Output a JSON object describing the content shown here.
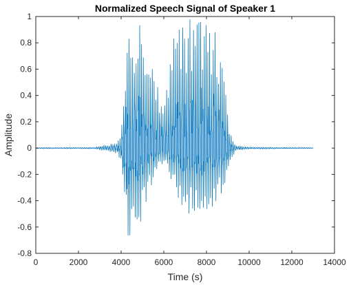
{
  "chart_data": {
    "type": "line",
    "title": "Normalized Speech Signal of Speaker 1",
    "xlabel": "Time (s)",
    "ylabel": "Amplitude",
    "xlim": [
      0,
      14000
    ],
    "ylim": [
      -0.8,
      1
    ],
    "xticks": [
      0,
      2000,
      4000,
      6000,
      8000,
      10000,
      12000,
      14000
    ],
    "yticks": [
      -0.8,
      -0.6,
      -0.4,
      -0.2,
      0,
      0.2,
      0.4,
      0.6,
      0.8,
      1
    ],
    "xtick_labels": [
      "0",
      "2000",
      "4000",
      "6000",
      "8000",
      "10000",
      "12000",
      "14000"
    ],
    "ytick_labels": [
      "-0.8",
      "-0.6",
      "-0.4",
      "-0.2",
      "0",
      "0.2",
      "0.4",
      "0.6",
      "0.8",
      "1"
    ],
    "grid": false,
    "line_color": "#0072BD",
    "series": [
      {
        "values_envelope": [
          {
            "x": 0,
            "max": 0.005,
            "min": -0.005
          },
          {
            "x": 2800,
            "max": 0.006,
            "min": -0.006
          },
          {
            "x": 3000,
            "max": 0.02,
            "min": -0.015
          },
          {
            "x": 3500,
            "max": 0.03,
            "min": -0.03
          },
          {
            "x": 3800,
            "max": 0.05,
            "min": -0.04
          },
          {
            "x": 4000,
            "max": 0.1,
            "min": -0.1
          },
          {
            "x": 4100,
            "max": 0.35,
            "min": -0.45
          },
          {
            "x": 4300,
            "max": 0.85,
            "min": -0.72
          },
          {
            "x": 4500,
            "max": 0.98,
            "min": -0.74
          },
          {
            "x": 4700,
            "max": 0.97,
            "min": -0.66
          },
          {
            "x": 5000,
            "max": 0.92,
            "min": -0.52
          },
          {
            "x": 5300,
            "max": 0.78,
            "min": -0.35
          },
          {
            "x": 5600,
            "max": 0.55,
            "min": -0.2
          },
          {
            "x": 5900,
            "max": 0.4,
            "min": -0.12
          },
          {
            "x": 6200,
            "max": 0.55,
            "min": -0.18
          },
          {
            "x": 6500,
            "max": 0.88,
            "min": -0.32
          },
          {
            "x": 6800,
            "max": 0.98,
            "min": -0.45
          },
          {
            "x": 7200,
            "max": 0.98,
            "min": -0.52
          },
          {
            "x": 7600,
            "max": 0.98,
            "min": -0.55
          },
          {
            "x": 8000,
            "max": 0.96,
            "min": -0.5
          },
          {
            "x": 8400,
            "max": 0.9,
            "min": -0.46
          },
          {
            "x": 8700,
            "max": 0.72,
            "min": -0.38
          },
          {
            "x": 8900,
            "max": 0.45,
            "min": -0.3
          },
          {
            "x": 9100,
            "max": 0.12,
            "min": -0.1
          },
          {
            "x": 9400,
            "max": 0.02,
            "min": -0.02
          },
          {
            "x": 10000,
            "max": 0.008,
            "min": -0.008
          },
          {
            "x": 13000,
            "max": 0.004,
            "min": -0.004
          }
        ]
      }
    ]
  }
}
